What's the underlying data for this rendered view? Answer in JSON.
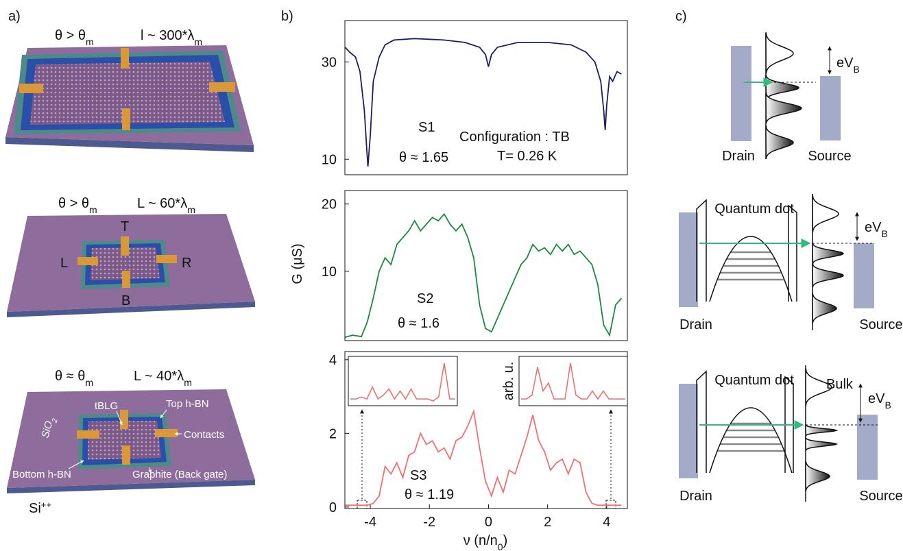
{
  "panel_labels": [
    "a)",
    "b)",
    "c)"
  ],
  "panel_a": {
    "devices": [
      {
        "angle": {
          "main": "θ > θ",
          "sub": "m"
        },
        "length": {
          "main": "l ~ 300*λ",
          "sub": "m"
        }
      },
      {
        "angle": {
          "main": "θ > θ",
          "sub": "m"
        },
        "length": {
          "main": "L ~ 60*λ",
          "sub": "m"
        },
        "contacts": [
          "T",
          "L",
          "R",
          "B"
        ]
      },
      {
        "angle": {
          "main": "θ ≈ θ",
          "sub": "m"
        },
        "length": {
          "main": "L ~ 40*λ",
          "sub": "m"
        },
        "labels": {
          "substrate": {
            "main": "SiO",
            "sub": "2"
          },
          "tblg": "tBLG",
          "top": "Top h-BN",
          "contacts": "Contacts",
          "bottom": "Bottom h-BN",
          "graphite": "Graphite (Back gate)",
          "silicon": {
            "main": "Si",
            "sup": "++"
          }
        }
      }
    ]
  },
  "chart_data": [
    {
      "type": "line",
      "color": "#1c1c6b",
      "x": [
        -4.85,
        -4.7,
        -4.5,
        -4.35,
        -4.2,
        -4.12,
        -4.08,
        -4.0,
        -3.9,
        -3.7,
        -3.5,
        -3.2,
        -2.5,
        -1.5,
        -0.8,
        -0.3,
        -0.1,
        0,
        0.1,
        0.3,
        1,
        2,
        2.8,
        3.3,
        3.6,
        3.8,
        3.9,
        3.95,
        4.0,
        4.1,
        4.2,
        4.35,
        4.5
      ],
      "values": [
        33,
        32,
        31,
        28,
        20,
        12,
        8.5,
        15,
        26,
        31,
        33.5,
        34.5,
        34.8,
        34.5,
        34,
        33,
        31.5,
        29,
        31.5,
        33,
        34,
        34,
        33.5,
        32,
        30,
        26,
        20,
        16,
        21,
        27,
        26,
        28,
        27.5
      ],
      "xlim": [
        -4.86,
        4.7
      ],
      "ylim": [
        6.8,
        38.5
      ],
      "yticks": [
        10,
        30
      ],
      "annotations": [
        "S1",
        "θ ≈ 1.65",
        "Configuration : TB",
        "T= 0.26 K"
      ]
    },
    {
      "type": "line",
      "color": "#1a8a3a",
      "x": [
        -4.85,
        -4.6,
        -4.3,
        -4.1,
        -3.9,
        -3.7,
        -3.5,
        -3.3,
        -3.1,
        -2.9,
        -2.7,
        -2.5,
        -2.3,
        -2.1,
        -1.9,
        -1.7,
        -1.5,
        -1.3,
        -1.1,
        -0.9,
        -0.7,
        -0.5,
        -0.3,
        -0.1,
        0.1,
        0.3,
        0.5,
        0.7,
        0.9,
        1.1,
        1.3,
        1.5,
        1.7,
        1.9,
        2.1,
        2.3,
        2.5,
        2.7,
        2.9,
        3.1,
        3.3,
        3.5,
        3.7,
        3.9,
        4.1,
        4.3,
        4.5
      ],
      "values": [
        0.2,
        0.5,
        0.3,
        2.5,
        6,
        10,
        12,
        11,
        14,
        15,
        16,
        17.5,
        16,
        17,
        18,
        17.5,
        18.5,
        17,
        16,
        17,
        15,
        12,
        5,
        1.5,
        1,
        3,
        5,
        7,
        9,
        11,
        12,
        14,
        13,
        13.5,
        12.5,
        14,
        13,
        14,
        12.5,
        13,
        12,
        11,
        8,
        2,
        0.5,
        5,
        6
      ],
      "xlim": [
        -4.86,
        4.7
      ],
      "ylim": [
        -0.3,
        22
      ],
      "yticks": [
        10,
        20
      ],
      "y_label": "G (μS)",
      "annotations": [
        "S2",
        "θ ≈ 1.6"
      ]
    },
    {
      "type": "line",
      "color": "#f07070",
      "x": [
        -4.85,
        -4.6,
        -4.3,
        -4.1,
        -3.9,
        -3.7,
        -3.5,
        -3.3,
        -3.1,
        -2.9,
        -2.7,
        -2.5,
        -2.3,
        -2.1,
        -1.9,
        -1.7,
        -1.5,
        -1.3,
        -1.1,
        -0.9,
        -0.7,
        -0.5,
        -0.3,
        -0.1,
        0.1,
        0.3,
        0.5,
        0.7,
        0.9,
        1.1,
        1.3,
        1.5,
        1.7,
        1.9,
        2.1,
        2.3,
        2.5,
        2.7,
        2.9,
        3.1,
        3.3,
        3.5,
        3.7,
        3.9,
        4.1,
        4.3,
        4.5
      ],
      "values": [
        0.05,
        0.05,
        0.05,
        0.05,
        0.1,
        0.3,
        1.1,
        0.9,
        1.2,
        0.8,
        1.4,
        1.5,
        2.0,
        1.7,
        1.8,
        1.5,
        1.6,
        1.3,
        1.8,
        1.9,
        2.2,
        2.6,
        1.6,
        0.7,
        0.3,
        0.8,
        0.4,
        1.0,
        0.9,
        1.4,
        1.9,
        2.5,
        1.8,
        1.5,
        1.0,
        1.2,
        1.3,
        0.9,
        1.3,
        1.2,
        0.4,
        0.1,
        0.05,
        0.05,
        0.05,
        0.05,
        0.05
      ],
      "xlim": [
        -4.86,
        4.7
      ],
      "ylim": [
        -0.04,
        4.22
      ],
      "yticks": [
        0,
        2,
        4
      ],
      "xticks": [
        -4,
        -2,
        0,
        2,
        4
      ],
      "x_label": {
        "main": "ν (n/n",
        "sub": "0",
        "tail": ")"
      },
      "annotations": [
        "S3",
        "θ ≈ 1.19"
      ],
      "inset_label": "arb. u.",
      "insets": [
        {
          "ylim": [
            0,
            1.1
          ],
          "values": [
            0.1,
            0.1,
            0.15,
            0.1,
            0.4,
            0.1,
            0.2,
            0.35,
            0.1,
            0.3,
            0.1,
            0.35,
            0.1,
            0.1,
            0.1,
            0.05,
            0.15,
            1,
            0.1,
            0.1
          ]
        },
        {
          "ylim": [
            0,
            1.1
          ],
          "values": [
            0.1,
            0.1,
            0.2,
            0.9,
            0.3,
            0.5,
            0.1,
            0.1,
            0.1,
            1,
            0.2,
            0.1,
            0.1,
            0.3,
            0.1,
            0.3,
            0.1,
            0.1,
            0.1,
            0.1
          ]
        }
      ]
    }
  ],
  "panel_c": {
    "diagrams": [
      {
        "energy": {
          "main": "eV",
          "sub": "B"
        },
        "drain": "Drain",
        "source": "Source"
      },
      {
        "dot": "Quantum dot",
        "energy": {
          "main": "eV",
          "sub": "B"
        },
        "drain": "Drain",
        "source": "Source"
      },
      {
        "dot": "Quantum dot",
        "bulk": "Bulk",
        "energy": {
          "main": "eV",
          "sub": "B"
        },
        "drain": "Drain",
        "source": "Source"
      }
    ]
  }
}
